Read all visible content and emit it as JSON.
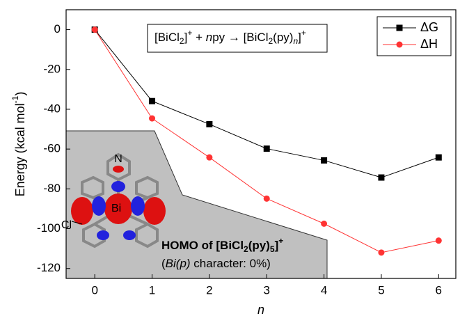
{
  "chart_data": {
    "type": "line",
    "x": [
      0,
      1,
      2,
      3,
      4,
      5,
      6
    ],
    "series": [
      {
        "name": "ΔG",
        "color": "#000000",
        "marker": "square",
        "values": [
          0,
          -35.9,
          -47.5,
          -59.8,
          -65.7,
          -74.3,
          -64.2
        ]
      },
      {
        "name": "ΔH",
        "color": "#ff3333",
        "marker": "circle",
        "values": [
          0,
          -44.6,
          -64.2,
          -84.9,
          -97.5,
          -112,
          -106
        ]
      }
    ],
    "xlim": [
      -0.5,
      6.3
    ],
    "ylim": [
      -125,
      10
    ],
    "xticks": [
      0,
      1,
      2,
      3,
      4,
      5,
      6
    ],
    "yticks": [
      0,
      -20,
      -40,
      -60,
      -80,
      -100,
      -120
    ],
    "x_label": "n",
    "y_label": [
      "Energy (kcal mol",
      "-1",
      ")"
    ],
    "legend": "upper right",
    "equation": [
      "[BiCl",
      "2",
      "]",
      "+",
      " + ",
      "n",
      "py → [BiCl",
      "2",
      "(py)",
      "n",
      "]",
      "+"
    ],
    "inset": {
      "atoms": [
        "N",
        "Bi",
        "Cl"
      ],
      "title": [
        "HOMO of [BiCl",
        "2",
        "(py)",
        "5",
        "]",
        "+"
      ],
      "caption": [
        "(",
        "Bi(p)",
        " character: 0%)"
      ]
    }
  }
}
